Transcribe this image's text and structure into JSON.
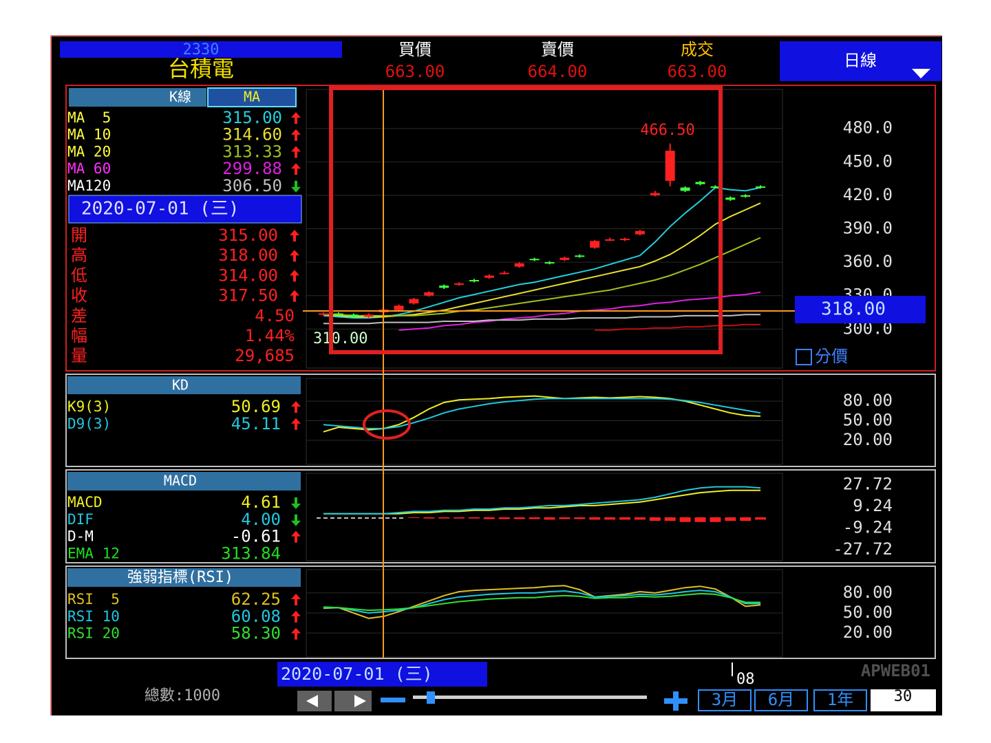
{
  "header": {
    "code": "2330",
    "name": "台積電",
    "quotes": [
      {
        "label": "買價",
        "value": "663.00",
        "label_color": "#ffffff"
      },
      {
        "label": "賣價",
        "value": "664.00",
        "label_color": "#ffffff"
      },
      {
        "label": "成交",
        "value": "663.00",
        "label_color": "#ffc000"
      }
    ],
    "period": "日線"
  },
  "kline": {
    "tabs": [
      "K線",
      "MA"
    ],
    "date": "2020-07-01 (三)",
    "ylim": [
      265,
      515
    ],
    "yticks": [
      {
        "value": 480,
        "label": "480.0"
      },
      {
        "value": 450,
        "label": "450.0"
      },
      {
        "value": 420,
        "label": "420.0"
      },
      {
        "value": 390,
        "label": "390.0"
      },
      {
        "value": 360,
        "label": "360.0"
      },
      {
        "value": 330,
        "label": "330.0"
      },
      {
        "value": 300,
        "label": "300.0"
      }
    ],
    "price_label": "318.00",
    "high_label": "466.50",
    "low_label": "310.00",
    "split_price": "分價",
    "up_color": "#ff2020",
    "down_color": "#40ff40",
    "candles": {
      "open": [
        313,
        314,
        313,
        311,
        315,
        317,
        323,
        330,
        339,
        340,
        344,
        346,
        350,
        356,
        363,
        360,
        362,
        366,
        373,
        380,
        380,
        385,
        420,
        433,
        427,
        432,
        428,
        418,
        420,
        428
      ],
      "high": [
        315,
        315,
        314,
        314,
        318,
        322,
        328,
        334,
        340,
        342,
        345,
        349,
        352,
        360,
        364,
        361,
        365,
        367,
        380,
        382,
        382,
        389,
        424,
        466.5,
        428,
        433,
        429,
        419,
        421,
        429
      ],
      "low": [
        312,
        312,
        310,
        310,
        314,
        316,
        322,
        329,
        336,
        339,
        342,
        345,
        349,
        355,
        361,
        358,
        361,
        364,
        372,
        379,
        379,
        384,
        419,
        428,
        423,
        429,
        426,
        415,
        418,
        426
      ],
      "close": [
        314,
        313,
        311,
        313,
        317.5,
        321,
        327,
        333,
        337,
        341,
        343,
        348,
        350.5,
        359,
        362,
        359,
        364,
        365,
        379,
        380.5,
        381,
        388,
        422,
        460,
        424,
        430,
        427,
        416,
        419,
        427
      ]
    },
    "ma": [
      {
        "name": "MA  5",
        "value": "315.00",
        "dir": "up",
        "label_color": "#ffff40",
        "color": "#20d0e0",
        "values": [
          312,
          311,
          310,
          310,
          311,
          313,
          316,
          320,
          324,
          328,
          331,
          334,
          337,
          340,
          342,
          345,
          348,
          351,
          354,
          358,
          362,
          366,
          378,
          392,
          404,
          415,
          427,
          425,
          424,
          427
        ]
      },
      {
        "name": "MA 10",
        "value": "314.60",
        "dir": "up",
        "label_color": "#ffff40",
        "color": "#e8e030",
        "values": [
          313,
          312,
          311,
          311,
          311,
          312,
          313,
          315,
          317,
          320,
          323,
          326,
          329,
          332,
          335,
          338,
          341,
          344,
          347,
          350,
          353,
          356,
          361,
          367,
          375,
          384,
          394,
          401,
          407,
          413
        ]
      },
      {
        "name": "MA 20",
        "value": "313.33",
        "dir": "up",
        "label_color": "#ffff40",
        "color": "#a0c020",
        "values": [
          313,
          313,
          312,
          312,
          312,
          312,
          312,
          313,
          314,
          316,
          317,
          319,
          321,
          323,
          325,
          327,
          329,
          331,
          333,
          335,
          338,
          341,
          344,
          348,
          353,
          358,
          364,
          370,
          376,
          382
        ]
      },
      {
        "name": "MA 60",
        "value": "299.88",
        "dir": "up",
        "label_color": "#ff30ff",
        "color": "#e020e0",
        "values": [
          null,
          null,
          null,
          null,
          null,
          299,
          300,
          301,
          303,
          304,
          306,
          307,
          309,
          310,
          311,
          313,
          314,
          316,
          317,
          318,
          320,
          321,
          323,
          324,
          326,
          327,
          328,
          330,
          331,
          333
        ]
      },
      {
        "name": "MA120",
        "value": "306.50",
        "dir": "down",
        "label_color": "#ffffff",
        "color": "#c0c0c0",
        "values": [
          305,
          305,
          305,
          305,
          306,
          306,
          306,
          306,
          307,
          307,
          307,
          308,
          308,
          308,
          309,
          309,
          309,
          310,
          310,
          310,
          310,
          311,
          311,
          311,
          312,
          312,
          312,
          312,
          313,
          313
        ]
      }
    ],
    "extra_line": {
      "color": "#c01010",
      "values": [
        null,
        null,
        null,
        null,
        null,
        null,
        null,
        null,
        null,
        null,
        null,
        null,
        null,
        null,
        null,
        null,
        null,
        null,
        299,
        299,
        300,
        300,
        301,
        301,
        302,
        302,
        303,
        303,
        304,
        304
      ]
    },
    "ohlc": [
      {
        "label": "開",
        "value": "315.00",
        "dir": "up"
      },
      {
        "label": "高",
        "value": "318.00",
        "dir": "up"
      },
      {
        "label": "低",
        "value": "314.00",
        "dir": "up"
      },
      {
        "label": "收",
        "value": "317.50",
        "dir": "up"
      },
      {
        "label": "差",
        "value": "4.50"
      },
      {
        "label": "幅",
        "value": "1.44%"
      },
      {
        "label": "量",
        "value": "29,685"
      }
    ]
  },
  "kd": {
    "title": "KD",
    "ylim": [
      -17,
      115
    ],
    "yticks": [
      {
        "value": 80,
        "label": "80.00"
      },
      {
        "value": 50,
        "label": "50.00"
      },
      {
        "value": 20,
        "label": "20.00"
      }
    ],
    "series": [
      {
        "name": "K9(3)",
        "value": "50.69",
        "dir": "up",
        "color": "#f0f020",
        "values": [
          33,
          40,
          38,
          36,
          38,
          44,
          55,
          68,
          78,
          82,
          83,
          84,
          86,
          87,
          88,
          86,
          84,
          85,
          86,
          85,
          86,
          87,
          86,
          84,
          80,
          74,
          68,
          62,
          58,
          57
        ]
      },
      {
        "name": "D9(3)",
        "value": "45.11",
        "dir": "up",
        "color": "#20c8e0",
        "values": [
          44,
          42,
          40,
          38,
          38,
          41,
          47,
          54,
          62,
          68,
          72,
          76,
          79,
          81,
          83,
          84,
          84,
          84,
          84,
          84,
          84,
          84,
          84,
          83,
          81,
          78,
          74,
          70,
          66,
          62
        ]
      }
    ]
  },
  "macd": {
    "title": "MACD",
    "ylim": [
      -37,
      37.5
    ],
    "yticks": [
      27.72,
      9.24,
      -9.24,
      -27.72
    ],
    "bar_color": "#ff2020",
    "series": [
      {
        "name": "MACD",
        "value": "4.61",
        "dir": "down",
        "color": "#f0f020",
        "kind": "line",
        "values": [
          3,
          3,
          3,
          3,
          3,
          3,
          4,
          4,
          5,
          5,
          6,
          6,
          7,
          7,
          8,
          8,
          9,
          10,
          10,
          11,
          12,
          13,
          15,
          17,
          19,
          21,
          22,
          23,
          23,
          23
        ]
      },
      {
        "name": "DIF",
        "value": "4.00",
        "dir": "down",
        "color": "#20c8e0",
        "kind": "line",
        "values": [
          3,
          3,
          3,
          3,
          3,
          4,
          5,
          5,
          6,
          6,
          7,
          7,
          8,
          8,
          9,
          10,
          10,
          11,
          12,
          13,
          14,
          15,
          17,
          20,
          23,
          25,
          26,
          26,
          26,
          25
        ]
      },
      {
        "name": "D-M",
        "value": "-0.61",
        "dir": "up",
        "color": "#ffffff",
        "kind": "bar",
        "values": [
          null,
          null,
          null,
          null,
          null,
          null,
          -0.6,
          -1,
          -1,
          -1,
          -1,
          -1.5,
          -1.5,
          -1.5,
          -1.5,
          -2,
          -1.5,
          -1.5,
          -2,
          -2,
          -2,
          -2,
          -3,
          -3,
          -4,
          -4,
          -4,
          -3,
          -3,
          -2
        ]
      },
      {
        "name": "EMA 12",
        "value": "313.84",
        "color": "#20e020"
      }
    ]
  },
  "rsi": {
    "title": "強弱指標(RSI)",
    "ylim": [
      -16,
      115
    ],
    "yticks": [
      {
        "value": 80,
        "label": "80.00"
      },
      {
        "value": 50,
        "label": "50.00"
      },
      {
        "value": 20,
        "label": "20.00"
      }
    ],
    "series": [
      {
        "name": "RSI  5",
        "value": "62.25",
        "dir": "up",
        "color": "#e0c020",
        "values": [
          57,
          58,
          50,
          42,
          45,
          52,
          60,
          68,
          76,
          82,
          84,
          85,
          86,
          87,
          88,
          90,
          91,
          85,
          74,
          76,
          78,
          82,
          80,
          84,
          88,
          90,
          86,
          74,
          60,
          62
        ]
      },
      {
        "name": "RSI 10",
        "value": "60.08",
        "dir": "up",
        "color": "#20c8e0",
        "values": [
          58,
          58,
          54,
          50,
          52,
          54,
          58,
          64,
          70,
          74,
          76,
          78,
          79,
          80,
          80,
          82,
          83,
          80,
          74,
          75,
          76,
          78,
          77,
          79,
          82,
          84,
          82,
          74,
          64,
          64
        ]
      },
      {
        "name": "RSI 20",
        "value": "58.30",
        "dir": "up",
        "color": "#30e030",
        "values": [
          59,
          58,
          56,
          54,
          55,
          56,
          58,
          61,
          64,
          67,
          69,
          71,
          72,
          73,
          73,
          75,
          76,
          75,
          72,
          73,
          73,
          75,
          74,
          75,
          77,
          79,
          78,
          73,
          66,
          66
        ]
      }
    ]
  },
  "footer": {
    "date": "2020-07-01 (三)",
    "total": "總數:1000",
    "month_tick": "08",
    "app_id": "APWEB01",
    "ranges": [
      "3月",
      "6月",
      "1年"
    ],
    "count": "30"
  }
}
